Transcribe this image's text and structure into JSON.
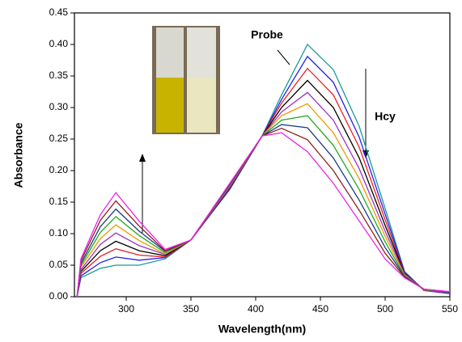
{
  "chart_data": {
    "type": "line",
    "x_label": "Wavelength(nm)",
    "y_label": "Absorbance",
    "annotations": [
      "Probe",
      "Hcy"
    ],
    "xlim": [
      260,
      550
    ],
    "xticks": [
      300,
      350,
      400,
      450,
      500,
      550
    ],
    "ylim": [
      0,
      0.45
    ],
    "yticks": [
      {
        "value": 0,
        "label": "0.00"
      },
      {
        "value": 0.05,
        "label": "0.05"
      },
      {
        "value": 0.1,
        "label": "0.10"
      },
      {
        "value": 0.15,
        "label": "0.15"
      },
      {
        "value": 0.2,
        "label": "0.20"
      },
      {
        "value": 0.25,
        "label": "0.25"
      },
      {
        "value": 0.3,
        "label": "0.30"
      },
      {
        "value": 0.35,
        "label": "0.35"
      },
      {
        "value": 0.4,
        "label": "0.40"
      },
      {
        "value": 0.45,
        "label": "0.45"
      }
    ],
    "x": [
      262,
      265,
      280,
      292,
      310,
      330,
      350,
      380,
      405,
      420,
      440,
      460,
      480,
      500,
      515,
      530,
      550
    ],
    "series": [
      {
        "color": "#1a9a9a",
        "values": [
          0,
          0.03,
          0.045,
          0.05,
          0.05,
          0.06,
          0.09,
          0.17,
          0.255,
          0.32,
          0.4,
          0.36,
          0.27,
          0.14,
          0.04,
          0.01,
          0.005
        ]
      },
      {
        "color": "#2020ee",
        "values": [
          0,
          0.033,
          0.054,
          0.063,
          0.058,
          0.062,
          0.09,
          0.171,
          0.255,
          0.313,
          0.381,
          0.34,
          0.253,
          0.131,
          0.039,
          0.01,
          0.005
        ]
      },
      {
        "color": "#ee2020",
        "values": [
          0,
          0.037,
          0.064,
          0.076,
          0.066,
          0.063,
          0.09,
          0.172,
          0.255,
          0.307,
          0.362,
          0.32,
          0.237,
          0.122,
          0.038,
          0.01,
          0.006
        ]
      },
      {
        "color": "#000000",
        "values": [
          0,
          0.04,
          0.073,
          0.088,
          0.073,
          0.065,
          0.09,
          0.173,
          0.255,
          0.3,
          0.343,
          0.3,
          0.22,
          0.113,
          0.037,
          0.011,
          0.006
        ]
      },
      {
        "color": "#9933cc",
        "values": [
          0,
          0.043,
          0.083,
          0.101,
          0.081,
          0.067,
          0.09,
          0.174,
          0.255,
          0.293,
          0.324,
          0.28,
          0.203,
          0.104,
          0.036,
          0.011,
          0.006
        ]
      },
      {
        "color": "#ee9900",
        "values": [
          0,
          0.047,
          0.092,
          0.114,
          0.089,
          0.068,
          0.09,
          0.176,
          0.255,
          0.287,
          0.306,
          0.26,
          0.187,
          0.096,
          0.034,
          0.011,
          0.007
        ]
      },
      {
        "color": "#22aa22",
        "values": [
          0,
          0.05,
          0.102,
          0.127,
          0.097,
          0.07,
          0.09,
          0.177,
          0.255,
          0.28,
          0.287,
          0.24,
          0.17,
          0.087,
          0.033,
          0.011,
          0.007
        ]
      },
      {
        "color": "#1e3a8a",
        "values": [
          0,
          0.053,
          0.111,
          0.139,
          0.104,
          0.072,
          0.09,
          0.178,
          0.255,
          0.273,
          0.268,
          0.22,
          0.153,
          0.078,
          0.032,
          0.012,
          0.007
        ]
      },
      {
        "color": "#8b2020",
        "values": [
          0,
          0.057,
          0.121,
          0.152,
          0.112,
          0.073,
          0.09,
          0.179,
          0.255,
          0.267,
          0.249,
          0.2,
          0.137,
          0.069,
          0.031,
          0.012,
          0.008
        ]
      },
      {
        "color": "#ee22ee",
        "values": [
          0,
          0.06,
          0.13,
          0.165,
          0.12,
          0.075,
          0.09,
          0.18,
          0.255,
          0.26,
          0.23,
          0.18,
          0.12,
          0.06,
          0.03,
          0.012,
          0.008
        ]
      }
    ]
  }
}
